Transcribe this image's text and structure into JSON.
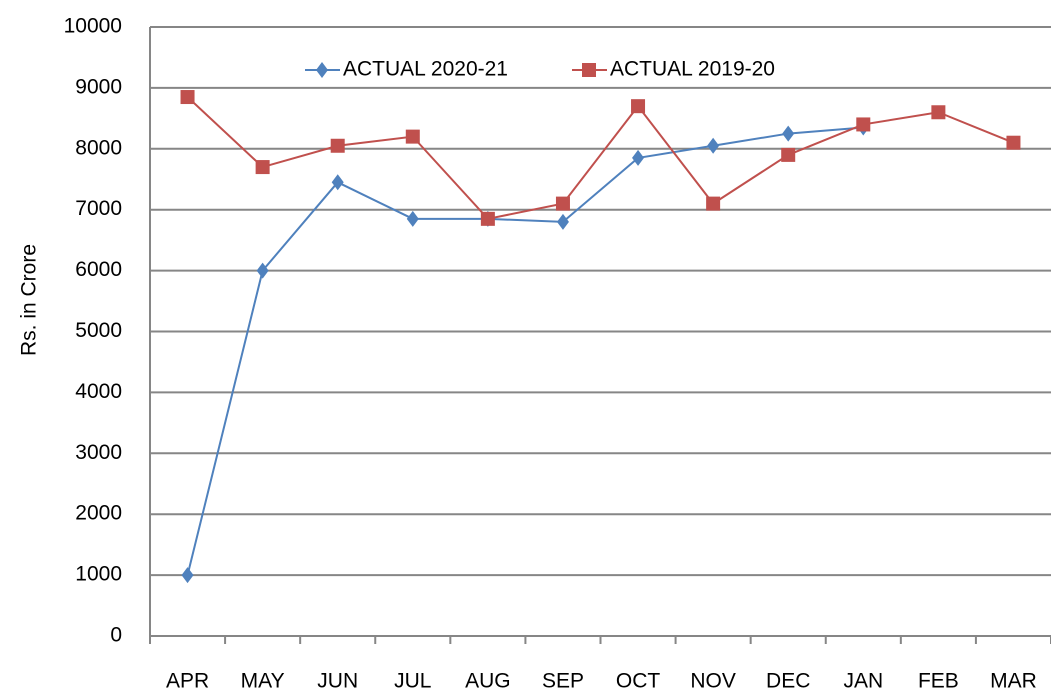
{
  "chart_data": {
    "type": "line",
    "y_label": "Rs. in Crore",
    "categories": [
      "APR",
      "MAY",
      "JUN",
      "JUL",
      "AUG",
      "SEP",
      "OCT",
      "NOV",
      "DEC",
      "JAN",
      "FEB",
      "MAR"
    ],
    "series": [
      {
        "name": "ACTUAL 2020-21",
        "color": "#4f81bd",
        "marker": "diamond",
        "values": [
          1000,
          6000,
          7450,
          6850,
          6850,
          6800,
          7850,
          8050,
          8250,
          8350,
          null,
          null
        ]
      },
      {
        "name": "ACTUAL 2019-20",
        "color": "#c0504d",
        "marker": "square",
        "values": [
          8850,
          7700,
          8050,
          8200,
          6850,
          7100,
          8700,
          7100,
          7900,
          8400,
          8600,
          8100
        ]
      }
    ],
    "ylim": [
      0,
      10000
    ],
    "yticks": [
      0,
      1000,
      2000,
      3000,
      4000,
      5000,
      6000,
      7000,
      8000,
      9000,
      10000
    ],
    "grid": true
  }
}
